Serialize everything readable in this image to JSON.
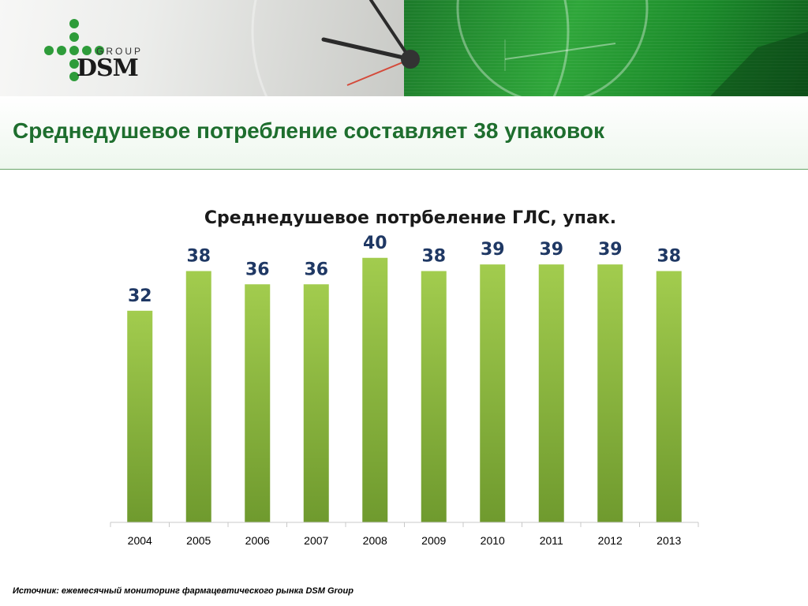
{
  "logo": {
    "group_text": "GROUP",
    "brand_text": "DSM"
  },
  "header": {
    "title": "Среднедушевое потребление составляет 38 упаковок"
  },
  "chart_data": {
    "type": "bar",
    "title": "Среднедушевое потрбеление ГЛС, упак.",
    "categories": [
      "2004",
      "2005",
      "2006",
      "2007",
      "2008",
      "2009",
      "2010",
      "2011",
      "2012",
      "2013"
    ],
    "values": [
      32,
      38,
      36,
      36,
      40,
      38,
      39,
      39,
      39,
      38
    ],
    "xlabel": "",
    "ylabel": "",
    "ylim": [
      0,
      42
    ],
    "grid": false,
    "legend": "none",
    "bar_color": "#8db83f",
    "label_color": "#1f3864"
  },
  "footer": {
    "source": "Источник: ежемесячный мониторинг фармацевтического рынка DSM Group"
  }
}
